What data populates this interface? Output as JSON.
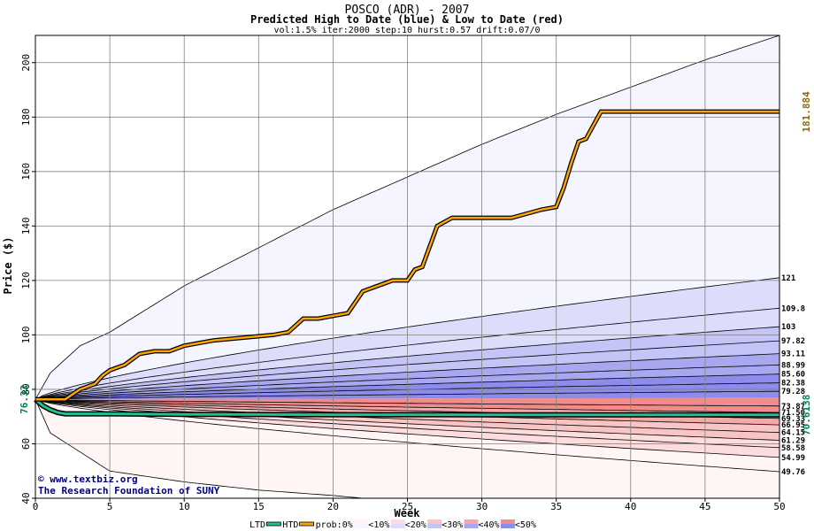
{
  "chart_data": {
    "type": "area",
    "title": "POSCO (ADR) - 2007",
    "subtitle": "Predicted High to Date (blue) &  Low to Date (red)",
    "params": "vol:1.5% iter:2000 step:10 hurst:0.57 drift:0.07/0",
    "xlabel": "Week",
    "ylabel": "Price ($)",
    "xlim": [
      0,
      50
    ],
    "ylim": [
      40,
      210
    ],
    "xticks": [
      "0",
      "5",
      "10",
      "15",
      "20",
      "25",
      "30",
      "35",
      "40",
      "45",
      "50"
    ],
    "yticks": [
      "40",
      "60",
      "80",
      "100",
      "120",
      "140",
      "160",
      "180",
      "200"
    ],
    "grid": true,
    "start_value": "76.32",
    "htd_final_label": "181.884",
    "ltd_final_label": "70.6138",
    "high_quantile_labels": [
      "121",
      "109.8",
      "103",
      "97.82",
      "93.11",
      "88.99",
      "85.60",
      "82.38",
      "79.28"
    ],
    "high_quantile_values": [
      121,
      109.8,
      103,
      97.82,
      93.11,
      88.99,
      85.6,
      82.38,
      79.28
    ],
    "low_quantile_labels": [
      "73.87",
      "71.50",
      "69.33",
      "66.95",
      "64.15",
      "61.29",
      "58.58",
      "54.99",
      "49.76"
    ],
    "low_quantile_values": [
      73.87,
      71.5,
      69.33,
      66.95,
      64.15,
      61.29,
      58.58,
      54.99,
      49.76
    ],
    "upper_envelope": {
      "x": [
        0,
        1,
        3,
        5,
        10,
        15,
        20,
        25,
        30,
        35,
        40,
        45,
        50
      ],
      "y": [
        76.32,
        86,
        96,
        101,
        118,
        132,
        146,
        158,
        170,
        181,
        191,
        201,
        210
      ]
    },
    "lower_envelope": {
      "x": [
        0,
        1,
        5,
        10,
        15,
        20,
        22
      ],
      "y": [
        76.32,
        64,
        50,
        46,
        43,
        41,
        40
      ]
    },
    "htd_path": {
      "x": [
        0,
        2,
        3,
        4,
        4.5,
        5,
        6,
        7,
        8,
        9,
        10,
        11,
        12,
        14,
        16,
        17,
        18,
        19,
        20,
        21,
        22,
        23,
        24,
        25,
        25.5,
        26,
        27,
        28,
        30,
        32,
        34,
        35,
        35.5,
        36,
        36.5,
        37,
        38,
        40,
        45,
        50
      ],
      "y": [
        76.32,
        76.32,
        80,
        82,
        85,
        87,
        89,
        93,
        94,
        94,
        96,
        97,
        98,
        99,
        100,
        101,
        106,
        106,
        107,
        108,
        116,
        118,
        120,
        120,
        124,
        125,
        140,
        143,
        143,
        143,
        146,
        147,
        154,
        163,
        171,
        172,
        182,
        182,
        182,
        182
      ]
    },
    "ltd_path": {
      "x": [
        0,
        0.5,
        1,
        1.5,
        2,
        5,
        10,
        20,
        30,
        40,
        50
      ],
      "y": [
        76.32,
        74,
        72.5,
        71.5,
        71,
        71,
        70.8,
        70.7,
        70.65,
        70.62,
        70.61
      ]
    },
    "legend": {
      "ltd": "LTD",
      "htd": "HTD",
      "prob_prefix": "prob:0%",
      "items": [
        "<10%",
        "<20%",
        "<30%",
        "<40%",
        "<50%"
      ],
      "colors_blue": [
        "#f5f5ff",
        "#dcdcfb",
        "#c4c4f6",
        "#a8a8f0",
        "#8c8cec"
      ],
      "colors_red": [
        "#fff5f5",
        "#fcdcdc",
        "#f8c4c4",
        "#f5a8a8",
        "#f08c8c"
      ]
    },
    "colors": {
      "htd": "#ffa500",
      "ltd": "#20c090",
      "start_label": "#008060",
      "htd_label": "#8b6914"
    }
  },
  "credit": {
    "line1": "© www.textbiz.org",
    "line2": "The Research Foundation of SUNY"
  }
}
